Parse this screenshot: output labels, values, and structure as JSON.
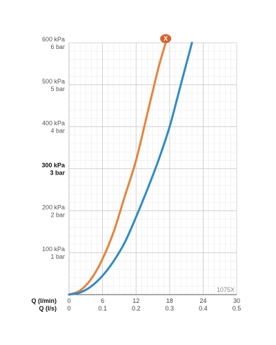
{
  "chart_data": {
    "type": "line",
    "x_axis": {
      "range": [
        0,
        30
      ],
      "rows": [
        {
          "name": "Q (l/min)",
          "ticks": [
            "0",
            "6",
            "12",
            "18",
            "24",
            "30"
          ]
        },
        {
          "name": "Q (l/s)",
          "ticks": [
            "0",
            "0.1",
            "0.2",
            "0.3",
            "0.4",
            "0.5"
          ]
        }
      ]
    },
    "y_axis": {
      "range": [
        0,
        600
      ],
      "ticks": [
        {
          "value": 100,
          "kpa": "100 kPa",
          "bar": "1 bar",
          "bold": false
        },
        {
          "value": 200,
          "kpa": "200 kPa",
          "bar": "2 bar",
          "bold": false
        },
        {
          "value": 300,
          "kpa": "300 kPa",
          "bar": "3 bar",
          "bold": true
        },
        {
          "value": 400,
          "kpa": "400 kPa",
          "bar": "4 bar",
          "bold": false
        },
        {
          "value": 500,
          "kpa": "500 kPa",
          "bar": "5 bar",
          "bold": false
        },
        {
          "value": 600,
          "kpa": "600 kPa",
          "bar": "6 bar",
          "bold": false
        }
      ]
    },
    "grid": true,
    "series": [
      {
        "color": "#E8833A",
        "x": [
          0,
          2,
          4,
          6,
          8,
          10,
          12,
          14,
          16,
          17.3
        ],
        "y": [
          0,
          10,
          38,
          85,
          150,
          235,
          320,
          430,
          540,
          600
        ]
      },
      {
        "color": "#2E8BC9",
        "x": [
          0,
          2,
          4,
          6,
          8,
          10,
          12,
          14,
          16,
          18,
          20,
          22
        ],
        "y": [
          0,
          5,
          20,
          45,
          80,
          125,
          185,
          250,
          320,
          400,
          500,
          600
        ]
      }
    ],
    "marker": {
      "series": 0,
      "x": 17.3,
      "y": 600,
      "icon": "hansgrohe-x-logo",
      "glyph": "X",
      "color": "#D9622B"
    },
    "watermark": "1075X"
  }
}
